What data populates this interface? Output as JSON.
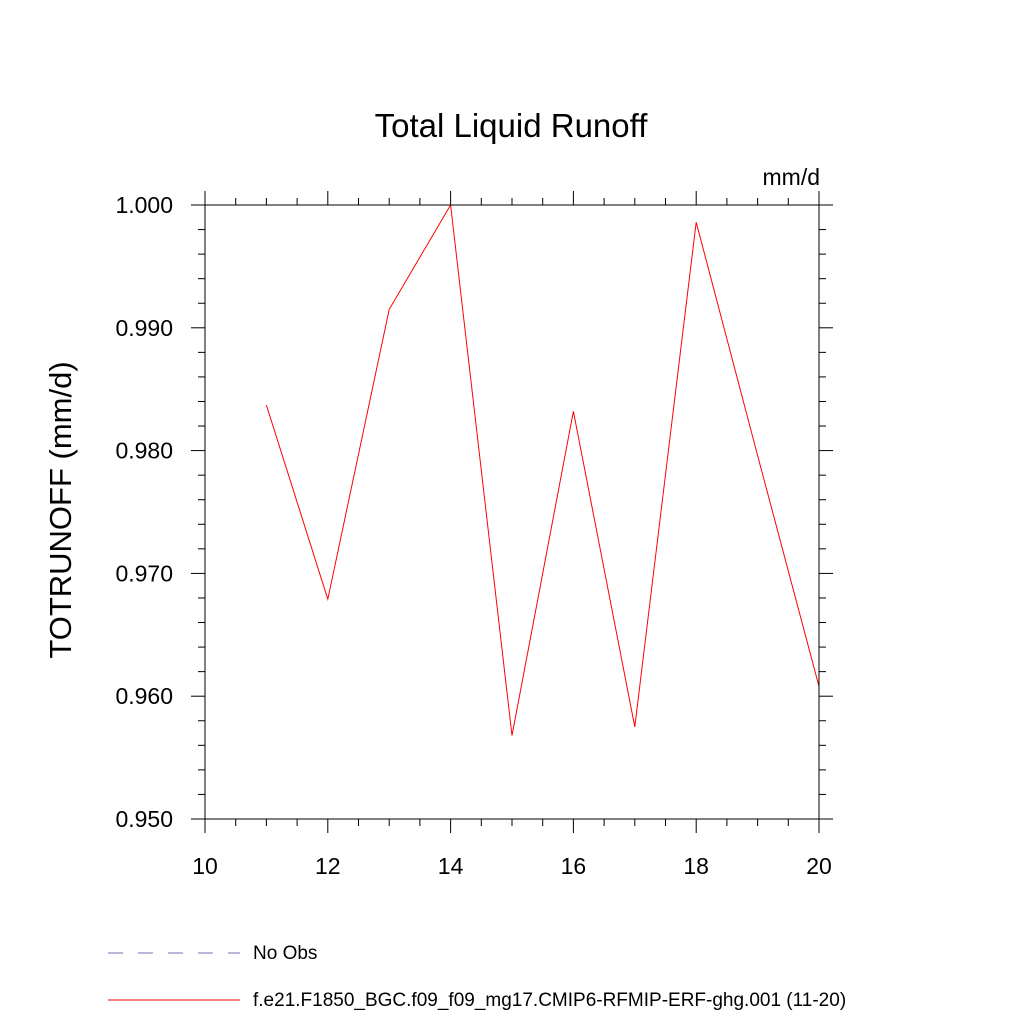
{
  "chart_data": {
    "type": "line",
    "title": "Total Liquid Runoff",
    "units_label": "mm/d",
    "ylabel": "TOTRUNOFF  (mm/d)",
    "xlabel": "",
    "xlim": [
      10,
      20
    ],
    "ylim": [
      0.95,
      1.0
    ],
    "x_ticks": [
      10,
      12,
      14,
      16,
      18,
      20
    ],
    "x_tick_labels": [
      "10",
      "12",
      "14",
      "16",
      "18",
      "20"
    ],
    "y_ticks": [
      0.95,
      0.96,
      0.97,
      0.98,
      0.99,
      1.0
    ],
    "y_tick_labels": [
      "0.950",
      "0.960",
      "0.970",
      "0.980",
      "0.990",
      "1.000"
    ],
    "x_minor_step": 0.5,
    "y_minor_step": 0.002,
    "grid": false,
    "legend_position": "bottom",
    "series": [
      {
        "name": "f.e21.F1850_BGC.f09_f09_mg17.CMIP6-RFMIP-ERF-ghg.001 (11-20)",
        "color": "#ff0000",
        "style": "solid",
        "x": [
          11,
          12,
          13,
          14,
          15,
          16,
          17,
          18,
          19,
          20
        ],
        "y": [
          0.9837,
          0.9679,
          0.9915,
          1.0,
          0.9568,
          0.9832,
          0.9575,
          0.9986,
          0.9796,
          0.9608
        ]
      }
    ],
    "legend": [
      {
        "label": "No Obs",
        "color": "#7a6fb0",
        "style": "dashed"
      },
      {
        "label": "f.e21.F1850_BGC.f09_f09_mg17.CMIP6-RFMIP-ERF-ghg.001 (11-20)",
        "color": "#ff0000",
        "style": "solid"
      }
    ]
  }
}
